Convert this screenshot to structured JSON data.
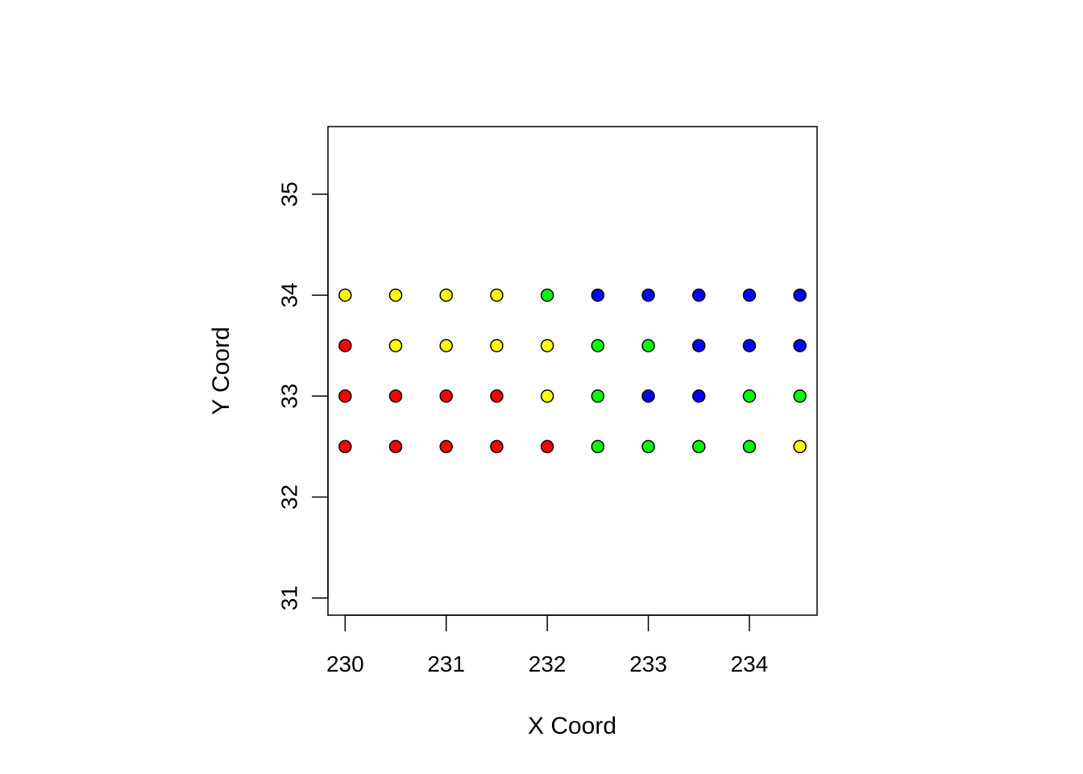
{
  "chart_data": {
    "type": "scatter",
    "title": "",
    "xlabel": "X Coord",
    "ylabel": "Y Coord",
    "xlim": [
      229.83,
      234.67
    ],
    "ylim": [
      30.83,
      35.67
    ],
    "x_ticks": [
      230,
      231,
      232,
      233,
      234
    ],
    "y_ticks": [
      31,
      32,
      33,
      34,
      35
    ],
    "grid": false,
    "legend": "none",
    "colors": {
      "red": "#ff0000",
      "yellow": "#ffff00",
      "green": "#00ff00",
      "blue": "#0000ff",
      "outline": "#000000"
    },
    "x": [
      230,
      230.5,
      231,
      231.5,
      232,
      232.5,
      233,
      233.5,
      234,
      234.5
    ],
    "rows": [
      {
        "y": 34,
        "colors": [
          "yellow",
          "yellow",
          "yellow",
          "yellow",
          "green",
          "blue",
          "blue",
          "blue",
          "blue",
          "blue"
        ]
      },
      {
        "y": 33.5,
        "colors": [
          "red",
          "yellow",
          "yellow",
          "yellow",
          "yellow",
          "green",
          "green",
          "blue",
          "blue",
          "blue"
        ]
      },
      {
        "y": 33,
        "colors": [
          "red",
          "red",
          "red",
          "red",
          "yellow",
          "green",
          "blue",
          "blue",
          "green",
          "green"
        ]
      },
      {
        "y": 32.5,
        "colors": [
          "red",
          "red",
          "red",
          "red",
          "red",
          "green",
          "green",
          "green",
          "green",
          "yellow"
        ]
      }
    ]
  }
}
